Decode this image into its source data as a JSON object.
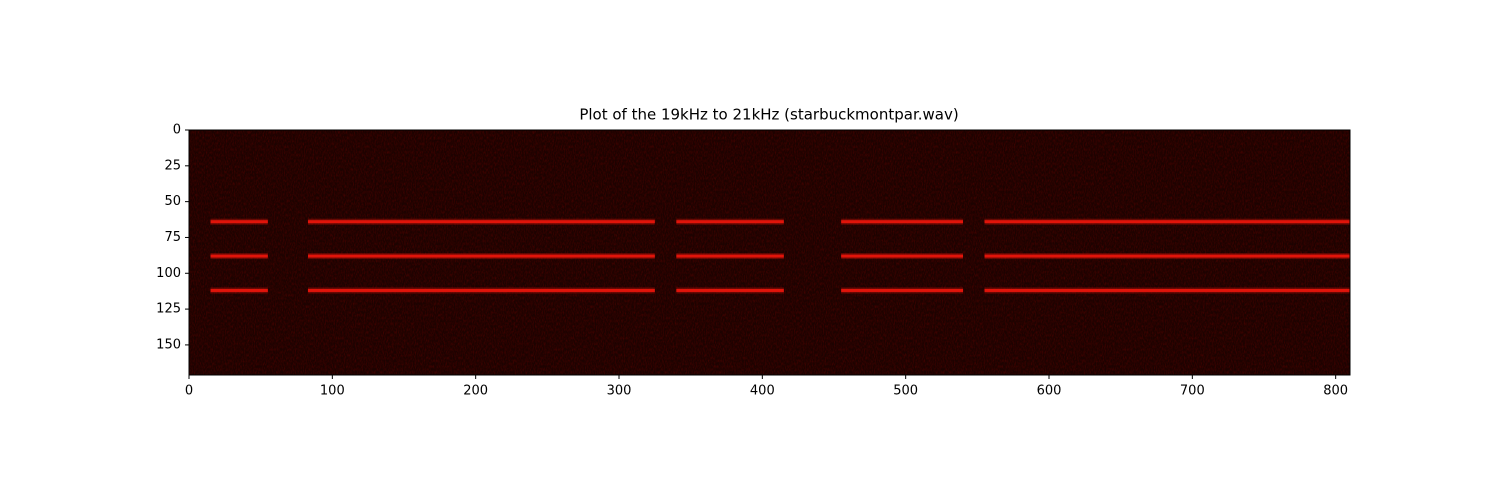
{
  "chart_data": {
    "type": "image",
    "title": "Plot of the 19kHz to 21kHz (starbuckmontpar.wav)",
    "xlim": [
      0,
      810
    ],
    "ylim": [
      171,
      0
    ],
    "xticks": [
      0,
      100,
      200,
      300,
      400,
      500,
      600,
      700,
      800
    ],
    "yticks": [
      0,
      25,
      50,
      75,
      100,
      125,
      150
    ],
    "background": "#1c0301",
    "band_color": "#e0140a",
    "bands": [
      {
        "y": 64,
        "segments": [
          [
            15,
            55
          ],
          [
            83,
            325
          ],
          [
            340,
            415
          ],
          [
            455,
            540
          ],
          [
            555,
            810
          ]
        ]
      },
      {
        "y": 88,
        "segments": [
          [
            15,
            55
          ],
          [
            83,
            325
          ],
          [
            340,
            415
          ],
          [
            455,
            540
          ],
          [
            555,
            810
          ]
        ]
      },
      {
        "y": 112,
        "segments": [
          [
            15,
            55
          ],
          [
            83,
            325
          ],
          [
            340,
            415
          ],
          [
            455,
            540
          ],
          [
            555,
            810
          ]
        ]
      }
    ]
  }
}
